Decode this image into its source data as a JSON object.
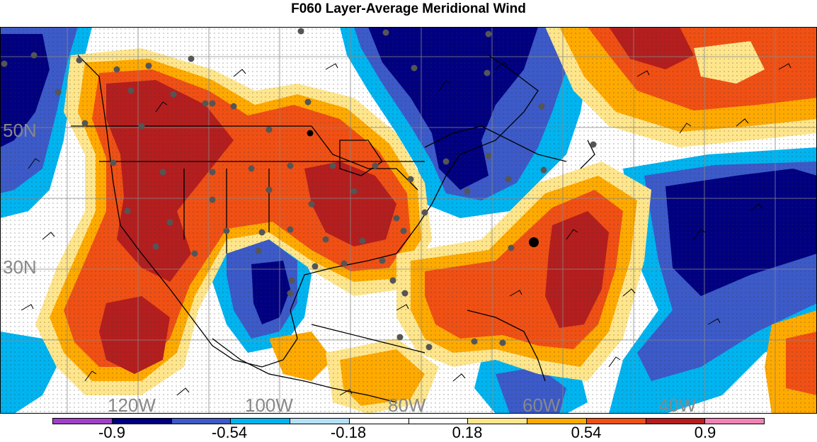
{
  "title": "F060 Layer-Average Meridional Wind",
  "map": {
    "lat_labels": [
      "50N",
      "30N"
    ],
    "lon_labels": [
      "120W",
      "100W",
      "80W",
      "60W",
      "40W"
    ]
  },
  "legend": {
    "labels": [
      "-0.9",
      "-0.54",
      "-0.18",
      "0.18",
      "0.54",
      "0.9"
    ],
    "colors": [
      "#a040c8",
      "#000080",
      "#3c5ac8",
      "#00b4f0",
      "#b4e1fa",
      "#ffffff",
      "#ffffff",
      "#ffe68c",
      "#ffaa00",
      "#f05014",
      "#b41e1e",
      "#f082b4"
    ]
  },
  "colors": {
    "strong_negative": "#000080",
    "negative": "#3c5ac8",
    "weak_negative": "#00b4f0",
    "slight_negative": "#b4e1fa",
    "slight_positive": "#ffe68c",
    "weak_positive": "#ffaa00",
    "positive": "#f05014",
    "strong_positive": "#b41e1e"
  }
}
